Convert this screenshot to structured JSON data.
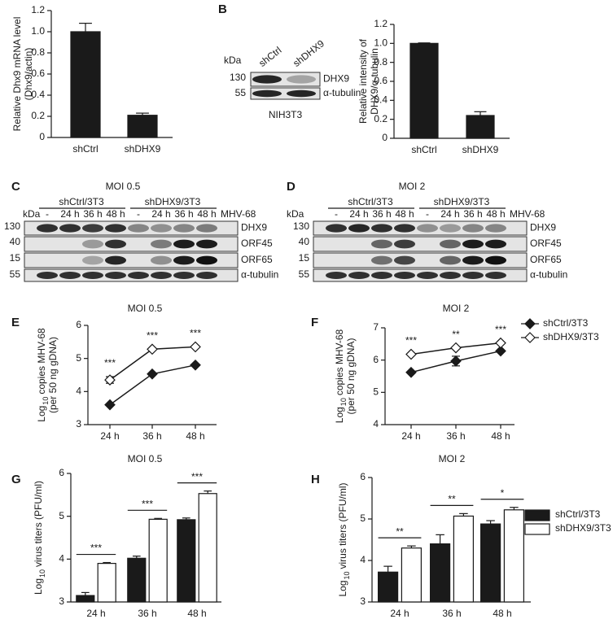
{
  "chart_data": [
    {
      "panel": "A",
      "type": "bar",
      "y_label": [
        [
          "Relative Dhx9 mRNA level"
        ],
        [
          "(Dhx9/actin)"
        ]
      ],
      "categories": [
        "shCtrl",
        "shDHX9"
      ],
      "values": [
        1,
        0.21
      ],
      "errors": [
        0.08,
        0.02
      ],
      "color": "#1a1a1a",
      "ylim": [
        0,
        1.2
      ],
      "yticks": [
        0,
        0.2,
        0.4,
        0.6,
        0.8,
        {
          "value": 1,
          "label": "1.0"
        },
        1.2
      ]
    },
    {
      "type": "bar",
      "y_label": [
        [
          "Relative intensity of"
        ],
        [
          "DHX9/α-tubulin"
        ]
      ],
      "categories": [
        "shCtrl",
        "shDHX9"
      ],
      "values": [
        1,
        0.24
      ],
      "errors": [
        0.005,
        0.04
      ],
      "color": "#1a1a1a",
      "ylim": [
        0,
        1.2
      ],
      "yticks": [
        0,
        0.2,
        0.4,
        0.6,
        0.8,
        {
          "value": 1,
          "label": "1.0"
        },
        1.2
      ]
    },
    {
      "panel": "E",
      "type": "line",
      "title": "MOI 0.5",
      "y_label": [
        [
          "Log",
          "10",
          "copies MHV-68"
        ],
        [
          "(per 50 ng gDNA)"
        ]
      ],
      "categories": [
        "24 h",
        "36 h",
        "48 h"
      ],
      "series": [
        {
          "color": "#1a1a1a",
          "marker": "filled",
          "values": [
            3.6,
            4.53,
            4.8
          ]
        },
        {
          "color": "#1a1a1a",
          "marker": "open",
          "values": [
            4.35,
            5.28,
            5.35
          ],
          "errors": [
            0.1,
            null,
            null
          ]
        }
      ],
      "ylim": [
        3,
        6
      ],
      "yticks": [
        3,
        4,
        5,
        6
      ],
      "annotations": [
        "***",
        "***",
        "***"
      ]
    },
    {
      "panel": "F",
      "type": "line",
      "title": "MOI 2",
      "y_label": [
        [
          "Log",
          "10",
          "copies MHV-68"
        ],
        [
          "(per 50 ng gDNA)"
        ]
      ],
      "categories": [
        "24 h",
        "36 h",
        "48 h"
      ],
      "series": [
        {
          "name": "shCtrl/3T3",
          "color": "#1a1a1a",
          "marker": "filled",
          "values": [
            5.62,
            5.97,
            6.28
          ],
          "errors": [
            null,
            0.15,
            null
          ]
        },
        {
          "name": "shDHX9/3T3",
          "color": "#1a1a1a",
          "marker": "open",
          "values": [
            6.18,
            6.38,
            6.53
          ]
        }
      ],
      "ylim": [
        4,
        7
      ],
      "yticks": [
        4,
        5,
        6,
        7
      ],
      "annotations": [
        "***",
        "**",
        "***"
      ],
      "legend": "right"
    },
    {
      "panel": "G",
      "type": "bar",
      "title": "MOI 0.5",
      "y_label": [
        [
          "Log",
          "10",
          "virus titers (PFU/ml)"
        ]
      ],
      "categories": [
        "24 h",
        "36 h",
        "48 h"
      ],
      "series": [
        {
          "color": "#1a1a1a",
          "values": [
            3.15,
            4.02,
            4.92
          ],
          "errors": [
            0.07,
            0.05,
            0.04
          ]
        },
        {
          "color": "#ffffff",
          "values": [
            3.9,
            4.93,
            5.53
          ],
          "errors": [
            0.02,
            0.02,
            0.06
          ]
        }
      ],
      "ylim": [
        3,
        6
      ],
      "yticks": [
        3,
        4,
        5,
        6
      ],
      "annotations": [
        "***",
        "***",
        "***"
      ]
    },
    {
      "panel": "H",
      "type": "bar",
      "title": "MOI 2",
      "y_label": [
        [
          "Log",
          "10",
          "virus titers (PFU/ml)"
        ]
      ],
      "categories": [
        "24 h",
        "36 h",
        "48 h"
      ],
      "series": [
        {
          "name": "shCtrl/3T3",
          "color": "#1a1a1a",
          "values": [
            3.72,
            4.4,
            4.88
          ],
          "errors": [
            0.14,
            0.22,
            0.08
          ]
        },
        {
          "name": "shDHX9/3T3",
          "color": "#ffffff",
          "values": [
            4.3,
            5.07,
            5.22
          ],
          "errors": [
            0.05,
            0.06,
            0.06
          ]
        }
      ],
      "ylim": [
        3,
        6
      ],
      "yticks": [
        3,
        4,
        5,
        6
      ],
      "annotations": [
        "**",
        "**",
        "*"
      ],
      "legend": "right"
    }
  ],
  "blots": [
    {
      "panel": "B",
      "kda_label": "kDa",
      "lanes": [
        "shCtrl",
        "shDHX9"
      ],
      "markers": [
        "130",
        "55"
      ],
      "proteins": [
        "DHX9",
        "α-tubulin"
      ],
      "cell_line": "NIH3T3"
    },
    {
      "panel": "C",
      "title": "MOI 0.5",
      "groups": [
        "shCtrl/3T3",
        "shDHX9/3T3"
      ],
      "treatment": "MHV-68",
      "kda_label": "kDa",
      "lanes": [
        "-",
        "24 h",
        "36 h",
        "48 h",
        "-",
        "24 h",
        "36 h",
        "48 h"
      ],
      "markers": [
        "130",
        "40",
        "15",
        "55"
      ],
      "proteins": [
        "DHX9",
        "ORF45",
        "ORF65",
        "α-tubulin"
      ]
    },
    {
      "panel": "D",
      "title": "MOI 2",
      "groups": [
        "shCtrl/3T3",
        "shDHX9/3T3"
      ],
      "treatment": "MHV-68",
      "kda_label": "kDa",
      "lanes": [
        "-",
        "24 h",
        "36 h",
        "48 h",
        "-",
        "24 h",
        "36 h",
        "48 h"
      ],
      "markers": [
        "130",
        "40",
        "15",
        "55"
      ],
      "proteins": [
        "DHX9",
        "ORF45",
        "ORF65",
        "α-tubulin"
      ]
    }
  ]
}
